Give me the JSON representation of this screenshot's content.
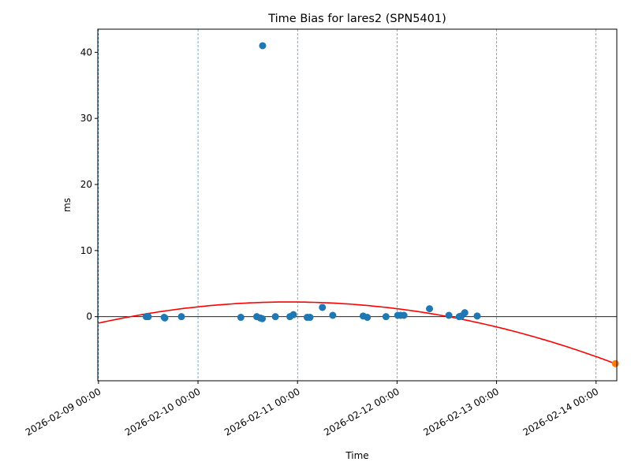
{
  "chart_data": {
    "type": "scatter",
    "title": "Time Bias for lares2 (SPN5401)",
    "xlabel": "Time",
    "ylabel": "ms",
    "xlim": [
      "2026-02-08T23:50:00",
      "2026-02-14T05:00:00"
    ],
    "ylim": [
      -9.7,
      43.5
    ],
    "x_ticks": [
      "2026-02-09 00:00",
      "2026-02-10 00:00",
      "2026-02-11 00:00",
      "2026-02-12 00:00",
      "2026-02-13 00:00",
      "2026-02-14 00:00"
    ],
    "y_ticks": [
      0,
      10,
      20,
      30,
      40
    ],
    "grid": "vertical dashed lines at x ticks",
    "zero_line": true,
    "series": [
      {
        "color": "#1f77b4",
        "points": [
          {
            "x": "2026-02-09T11:30:00",
            "y": 0.0
          },
          {
            "x": "2026-02-09T12:00:00",
            "y": 0.0
          },
          {
            "x": "2026-02-09T15:50:00",
            "y": -0.1
          },
          {
            "x": "2026-02-09T16:00:00",
            "y": -0.2
          },
          {
            "x": "2026-02-09T20:00:00",
            "y": 0.0
          },
          {
            "x": "2026-02-10T10:20:00",
            "y": -0.1
          },
          {
            "x": "2026-02-10T14:10:00",
            "y": 0.0
          },
          {
            "x": "2026-02-10T15:00:00",
            "y": -0.2
          },
          {
            "x": "2026-02-10T15:30:00",
            "y": -0.3
          },
          {
            "x": "2026-02-10T15:35:00",
            "y": 41.0
          },
          {
            "x": "2026-02-10T18:40:00",
            "y": 0.0
          },
          {
            "x": "2026-02-10T22:10:00",
            "y": 0.0
          },
          {
            "x": "2026-02-10T23:00:00",
            "y": 0.3
          },
          {
            "x": "2026-02-11T02:20:00",
            "y": -0.1
          },
          {
            "x": "2026-02-11T03:00:00",
            "y": -0.1
          },
          {
            "x": "2026-02-11T06:00:00",
            "y": 1.4
          },
          {
            "x": "2026-02-11T08:30:00",
            "y": 0.2
          },
          {
            "x": "2026-02-11T15:50:00",
            "y": 0.1
          },
          {
            "x": "2026-02-11T16:50:00",
            "y": -0.1
          },
          {
            "x": "2026-02-11T21:20:00",
            "y": 0.0
          },
          {
            "x": "2026-02-12T00:10:00",
            "y": 0.2
          },
          {
            "x": "2026-02-12T00:50:00",
            "y": 0.2
          },
          {
            "x": "2026-02-12T01:40:00",
            "y": 0.2
          },
          {
            "x": "2026-02-12T07:50:00",
            "y": 1.2
          },
          {
            "x": "2026-02-12T12:30:00",
            "y": 0.2
          },
          {
            "x": "2026-02-12T15:00:00",
            "y": 0.0
          },
          {
            "x": "2026-02-12T15:30:00",
            "y": 0.1
          },
          {
            "x": "2026-02-12T16:20:00",
            "y": 0.6
          },
          {
            "x": "2026-02-12T19:20:00",
            "y": 0.1
          }
        ]
      },
      {
        "color": "#ff7f0e",
        "points": [
          {
            "x": "2026-02-14T04:40:00",
            "y": -7.1
          }
        ]
      }
    ],
    "fit_curve": {
      "color": "#ff0000",
      "type": "quadratic",
      "x": [
        "2026-02-09T00:00:00",
        "2026-02-10T00:00:00",
        "2026-02-10T21:00:00",
        "2026-02-12T00:00:00",
        "2026-02-13T00:00:00",
        "2026-02-14T04:40:00"
      ],
      "y": [
        -1.0,
        1.5,
        2.25,
        1.2,
        -1.6,
        -7.1
      ]
    }
  }
}
